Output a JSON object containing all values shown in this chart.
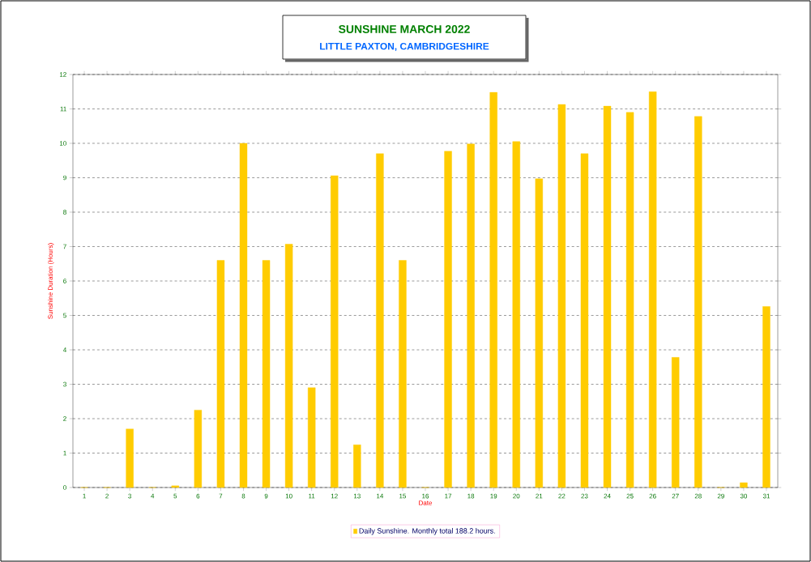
{
  "chart_data": {
    "type": "bar",
    "title": "SUNSHINE   MARCH 2022",
    "subtitle": "LITTLE PAXTON, CAMBRIDGESHIRE",
    "xlabel": "Date",
    "ylabel": "Sunshine Duration (Hours)",
    "categories": [
      "1",
      "2",
      "3",
      "4",
      "5",
      "6",
      "7",
      "8",
      "9",
      "10",
      "11",
      "12",
      "13",
      "14",
      "15",
      "16",
      "17",
      "18",
      "19",
      "20",
      "21",
      "22",
      "23",
      "24",
      "25",
      "26",
      "27",
      "28",
      "29",
      "30",
      "31"
    ],
    "series": [
      {
        "name": "Daily Sunshine. Monthly total 188.2 hours.",
        "color": "#ffcc00",
        "values": [
          0,
          0,
          1.7,
          0,
          0.05,
          2.25,
          6.6,
          10.0,
          6.6,
          7.07,
          2.9,
          9.06,
          1.24,
          9.7,
          6.6,
          0,
          9.77,
          9.98,
          11.48,
          10.05,
          8.97,
          11.13,
          9.7,
          11.08,
          10.9,
          11.5,
          3.78,
          10.78,
          0,
          0.14,
          5.26
        ]
      }
    ],
    "ylim": [
      0,
      12
    ],
    "yticks": [
      0,
      1,
      2,
      3,
      4,
      5,
      6,
      7,
      8,
      9,
      10,
      11,
      12
    ],
    "grid": "y",
    "legend": "bottom"
  }
}
